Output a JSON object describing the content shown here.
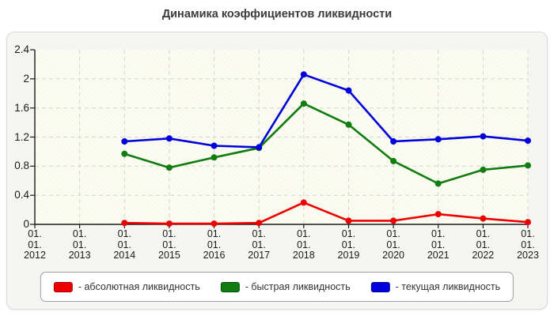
{
  "title": "Динамика коэффициентов ликвидности",
  "chart_data": {
    "type": "line",
    "title": "Динамика коэффициентов ликвидности",
    "categories": [
      "01.01.2012",
      "01.01.2013",
      "01.01.2014",
      "01.01.2015",
      "01.01.2016",
      "01.01.2017",
      "01.01.2018",
      "01.01.2019",
      "01.01.2020",
      "01.01.2021",
      "01.01.2022",
      "01.01.2023"
    ],
    "x_tick_labels": [
      [
        "01.",
        "01.",
        "2012"
      ],
      [
        "01.",
        "01.",
        "2013"
      ],
      [
        "01.",
        "01.",
        "2014"
      ],
      [
        "01.",
        "01.",
        "2015"
      ],
      [
        "01.",
        "01.",
        "2016"
      ],
      [
        "01.",
        "01.",
        "2017"
      ],
      [
        "01.",
        "01.",
        "2018"
      ],
      [
        "01.",
        "01.",
        "2019"
      ],
      [
        "01.",
        "01.",
        "2020"
      ],
      [
        "01.",
        "01.",
        "2021"
      ],
      [
        "01.",
        "01.",
        "2022"
      ],
      [
        "01.",
        "01.",
        "2023"
      ]
    ],
    "series": [
      {
        "name": "абсолютная ликвидность",
        "color": "#ee0000",
        "values": [
          null,
          null,
          0.02,
          0.01,
          0.01,
          0.02,
          0.3,
          0.05,
          0.05,
          0.14,
          0.08,
          0.03
        ]
      },
      {
        "name": "быстрая ликвидность",
        "color": "#0f7d0f",
        "values": [
          null,
          null,
          0.97,
          0.78,
          0.92,
          1.05,
          1.66,
          1.37,
          0.87,
          0.56,
          0.75,
          0.81
        ]
      },
      {
        "name": "текущая ликвидность",
        "color": "#0000dd",
        "values": [
          null,
          null,
          1.14,
          1.18,
          1.08,
          1.06,
          2.06,
          1.84,
          1.14,
          1.17,
          1.21,
          1.15
        ]
      }
    ],
    "ylim": [
      0,
      2.4
    ],
    "y_ticks": [
      0,
      0.4,
      0.8,
      1.2,
      1.6,
      2,
      2.4
    ],
    "y_tick_labels": [
      "0",
      "0.4",
      "0.8",
      "1.2",
      "1.6",
      "2",
      "2.4"
    ],
    "grid": "dashed",
    "grid_color": "#d6d6d6",
    "axis_color": "#1a1a1a",
    "xlabel": "",
    "ylabel": "",
    "legend_position": "bottom"
  },
  "legend": {
    "items": [
      {
        "label": "- абсолютная ликвидность",
        "color": "#ee0000",
        "border": "#a00000"
      },
      {
        "label": "- быстрая ликвидность",
        "color": "#0f7d0f",
        "border": "#054d05"
      },
      {
        "label": "- текущая ликвидность",
        "color": "#0000dd",
        "border": "#000090"
      }
    ]
  }
}
